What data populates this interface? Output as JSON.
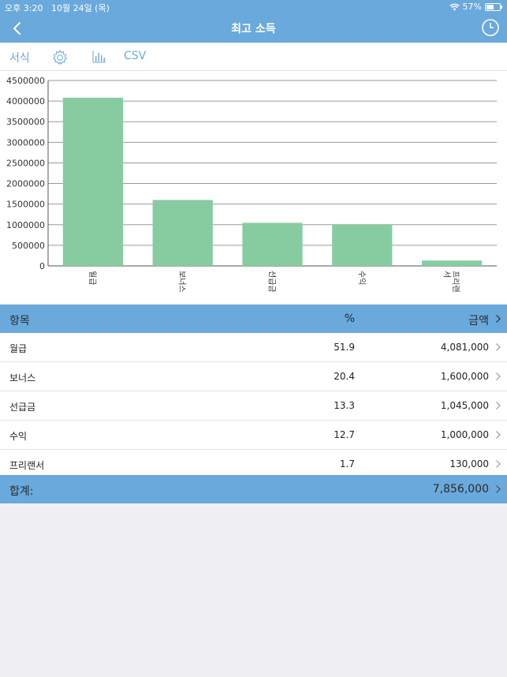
{
  "status_bar": {
    "time": "오후 3:20",
    "date": "10월 24일 (목)",
    "battery": "57%",
    "battery_level": 0.57
  },
  "nav": {
    "title": "최고 소득"
  },
  "toolbar": {
    "format_label": "서식",
    "csv_label": "CSV",
    "settings_icon": "gear-icon",
    "chart_icon": "bar-chart-icon"
  },
  "chart_data": {
    "type": "bar",
    "categories": [
      "월급",
      "보너스",
      "선급금",
      "수익",
      "프리랜서"
    ],
    "category_lines": [
      [
        "월급"
      ],
      [
        "보너스"
      ],
      [
        "선급금"
      ],
      [
        "수익"
      ],
      [
        "프리랜",
        "서"
      ]
    ],
    "values": [
      4081000,
      1600000,
      1045000,
      1000000,
      130000
    ],
    "yticks": [
      0,
      500000,
      1000000,
      1500000,
      2000000,
      2500000,
      3000000,
      3500000,
      4000000,
      4500000
    ],
    "ylim": [
      0,
      4500000
    ],
    "bar_color": "#86cca0",
    "grid": true
  },
  "table": {
    "headers": {
      "item": "항목",
      "percent": "%",
      "amount": "금액"
    },
    "rows": [
      {
        "name": "월급",
        "percent": "51.9",
        "amount": "4,081,000"
      },
      {
        "name": "보너스",
        "percent": "20.4",
        "amount": "1,600,000"
      },
      {
        "name": "선급금",
        "percent": "13.3",
        "amount": "1,045,000"
      },
      {
        "name": "수익",
        "percent": "12.7",
        "amount": "1,000,000"
      },
      {
        "name": "프리랜서",
        "percent": "1.7",
        "amount": "130,000"
      }
    ],
    "total_label": "합계:",
    "total_value": "7,856,000"
  },
  "colors": {
    "accent": "#6aa9dc",
    "bar": "#86cca0"
  }
}
